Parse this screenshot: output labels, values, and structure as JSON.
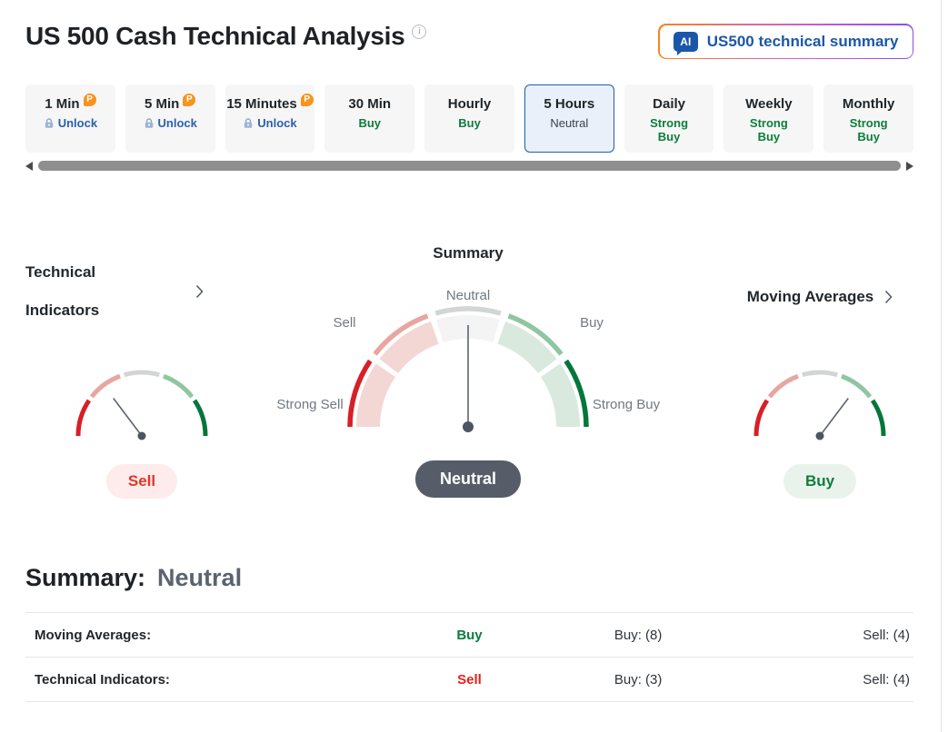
{
  "header": {
    "title": "US 500 Cash Technical Analysis",
    "ai_button": {
      "icon_text": "AI",
      "label": "US500 technical summary"
    }
  },
  "tabs": [
    {
      "label": "1 Min",
      "pro_badge": "P",
      "action": "Unlock"
    },
    {
      "label": "5 Min",
      "pro_badge": "P",
      "action": "Unlock"
    },
    {
      "label": "15 Minutes",
      "pro_badge": "P",
      "action": "Unlock"
    },
    {
      "label": "30 Min",
      "signal": "Buy"
    },
    {
      "label": "Hourly",
      "signal": "Buy"
    },
    {
      "label": "5 Hours",
      "signal": "Neutral",
      "selected": true
    },
    {
      "label": "Daily",
      "signal": "Strong Buy"
    },
    {
      "label": "Weekly",
      "signal": "Strong Buy"
    },
    {
      "label": "Monthly",
      "signal": "Strong Buy"
    }
  ],
  "gauges": {
    "left": {
      "title": "Technical Indicators",
      "title_line1": "Technical",
      "title_line2": "Indicators",
      "signal": "Sell",
      "needle_deg": 127
    },
    "center": {
      "title": "Summary",
      "signal": "Neutral",
      "needle_deg": 90,
      "scale_labels": {
        "neutral": "Neutral",
        "sell": "Sell",
        "buy": "Buy",
        "strong_sell": "Strong Sell",
        "strong_buy": "Strong Buy"
      }
    },
    "right": {
      "title": "Moving Averages",
      "signal": "Buy",
      "needle_deg": 53
    }
  },
  "summary_heading": {
    "label": "Summary:",
    "value": "Neutral"
  },
  "table": {
    "rows": [
      {
        "label": "Moving Averages:",
        "signal": "Buy",
        "buy_count": "Buy: (8)",
        "sell_count": "Sell: (4)"
      },
      {
        "label": "Technical Indicators:",
        "signal": "Sell",
        "buy_count": "Buy: (3)",
        "sell_count": "Sell: (4)"
      }
    ]
  },
  "colors": {
    "accent_blue": "#1b57a8",
    "selected_tab_border": "#1f5fa9",
    "selected_tab_bg": "#e9f0f9",
    "green": "#0c7d3b",
    "red": "#e3231a",
    "strong_red_arc": "#d81f26",
    "salmon_arc": "#e7a69f",
    "gray_arc": "#d2d6d3",
    "light_green_arc": "#8fc6a1",
    "strong_green_arc": "#04763a",
    "neutral_pill_bg": "#565d68",
    "sell_pill_bg": "#fdeceb",
    "buy_pill_bg": "#e9f3ec",
    "pro_badge_orange": "#f7941d",
    "needle": "#5d6470"
  }
}
